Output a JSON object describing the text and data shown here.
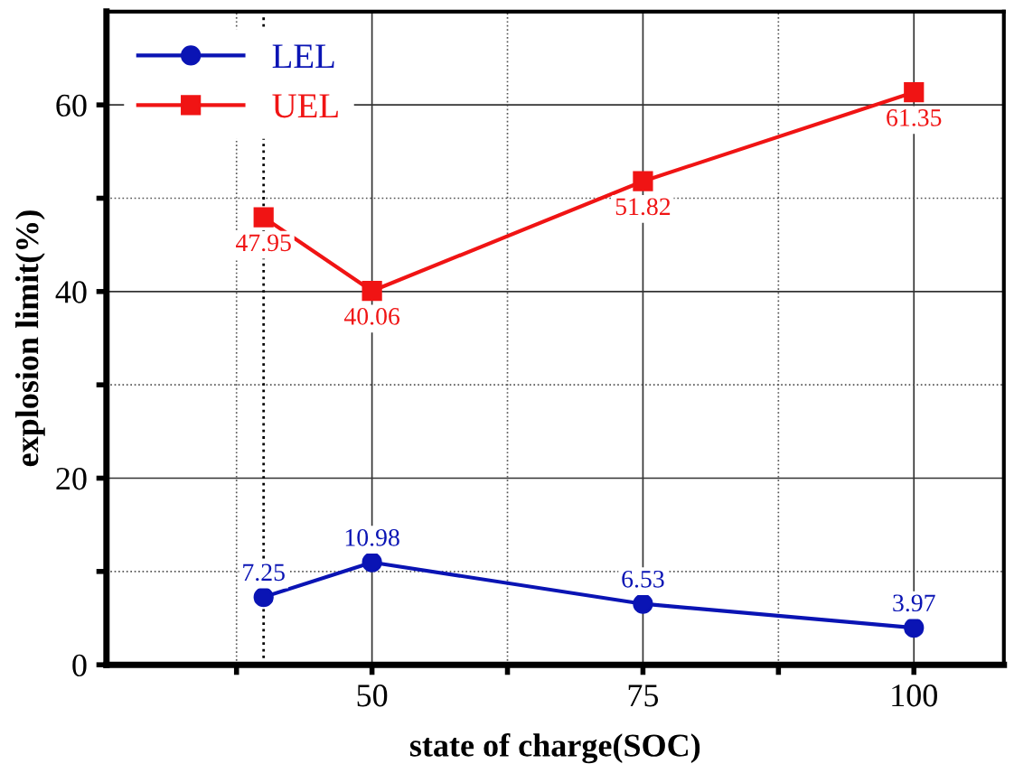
{
  "chart_data": {
    "type": "line",
    "xlabel": "state of charge(SOC)",
    "ylabel": "explosion limit(%)",
    "x": [
      40,
      50,
      75,
      100
    ],
    "series": [
      {
        "name": "LEL",
        "color": "#0a14b4",
        "marker": "circle",
        "values": [
          7.25,
          10.98,
          6.53,
          3.97
        ]
      },
      {
        "name": "UEL",
        "color": "#f01414",
        "marker": "square",
        "values": [
          47.95,
          40.06,
          51.82,
          61.35
        ]
      }
    ],
    "xlim": [
      25.5,
      108.3
    ],
    "ylim": [
      0,
      70
    ],
    "xticks": [
      {
        "value": 37.5,
        "label": null
      },
      50,
      {
        "value": 62.5,
        "label": null
      },
      75,
      {
        "value": 87.5,
        "label": null
      },
      100
    ],
    "yticks": [
      0,
      {
        "value": 10,
        "label": null
      },
      20,
      {
        "value": 30,
        "label": null
      },
      40,
      {
        "value": 50,
        "label": null
      },
      60
    ],
    "ref_lines": [
      {
        "axis": "x",
        "value": 40,
        "line_style": "dotted",
        "color": "#000000"
      }
    ],
    "grid": true,
    "legend": "top left",
    "data_labels": true,
    "line_style": "solid"
  }
}
